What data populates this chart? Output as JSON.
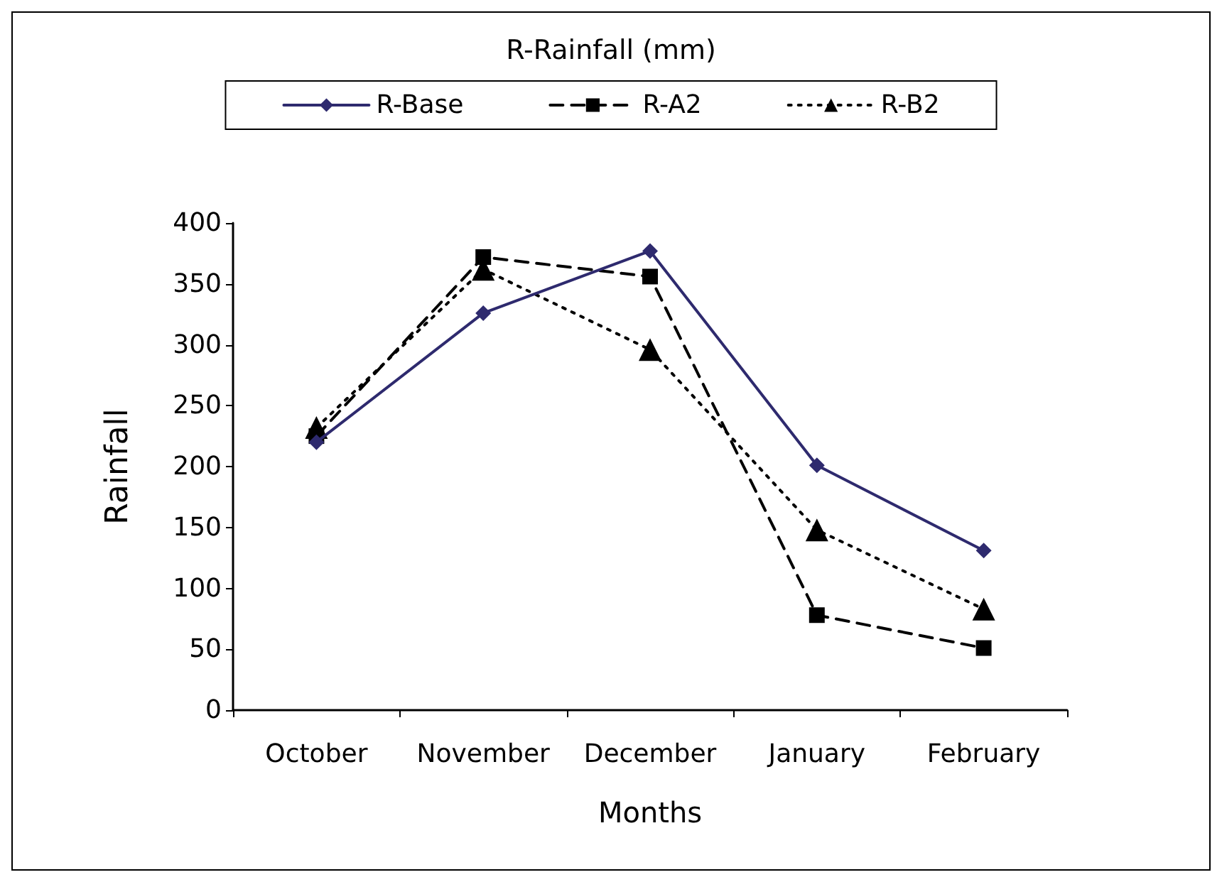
{
  "chart_data": {
    "type": "line",
    "title": "R-Rainfall (mm)",
    "xlabel": "Months",
    "ylabel": "Rainfall",
    "categories": [
      "October",
      "November",
      "December",
      "January",
      "February"
    ],
    "series": [
      {
        "name": "R-Base",
        "color": "#2e2a6e",
        "values": [
          220,
          326,
          377,
          201,
          131
        ],
        "marker": "diamond",
        "line_style": "solid"
      },
      {
        "name": "R-A2",
        "color": "#000000",
        "values": [
          225,
          372,
          356,
          78,
          51
        ],
        "marker": "square",
        "line_style": "dashed"
      },
      {
        "name": "R-B2",
        "color": "#000000",
        "values": [
          232,
          362,
          296,
          148,
          83
        ],
        "marker": "triangle",
        "line_style": "dotted"
      }
    ],
    "ylim": [
      0,
      400
    ],
    "yticks": [
      0,
      50,
      100,
      150,
      200,
      250,
      300,
      350,
      400
    ],
    "grid": false,
    "legend": "top"
  }
}
